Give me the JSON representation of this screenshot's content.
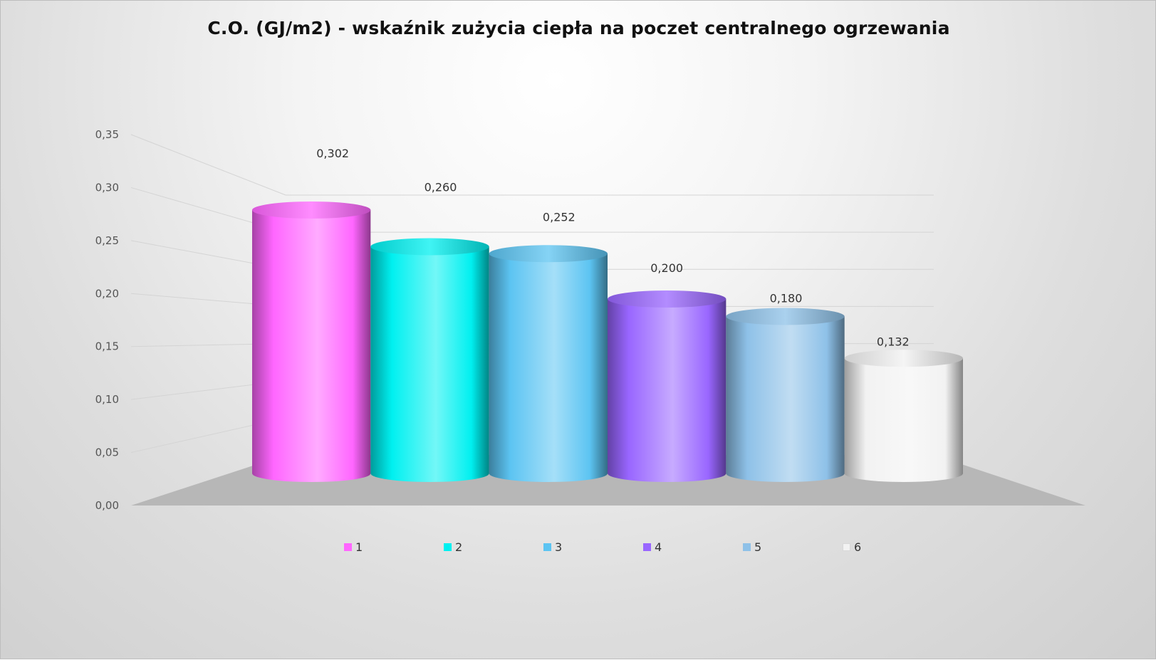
{
  "chart_data": {
    "type": "bar",
    "style": "3d-cylinder",
    "title": "C.O. (GJ/m2) - wskaźnik zużycia ciepła na poczet centralnego ogrzewania",
    "xlabel": "",
    "ylabel": "",
    "categories": [
      "1",
      "2",
      "3",
      "4",
      "5",
      "6"
    ],
    "values": [
      0.302,
      0.26,
      0.252,
      0.2,
      0.18,
      0.132
    ],
    "value_labels": [
      "0,302",
      "0,260",
      "0,252",
      "0,200",
      "0,180",
      "0,132"
    ],
    "ylim": [
      0,
      0.35
    ],
    "yticks": [
      "0,00",
      "0,05",
      "0,10",
      "0,15",
      "0,20",
      "0,25",
      "0,30",
      "0,35"
    ],
    "grid": true,
    "legend": {
      "position": "bottom",
      "entries": [
        "1",
        "2",
        "3",
        "4",
        "5",
        "6"
      ]
    },
    "colors": [
      "#ff66ff",
      "#00f0f0",
      "#5cc4f2",
      "#9966ff",
      "#8ec1e8",
      "#f2f2f2"
    ]
  }
}
